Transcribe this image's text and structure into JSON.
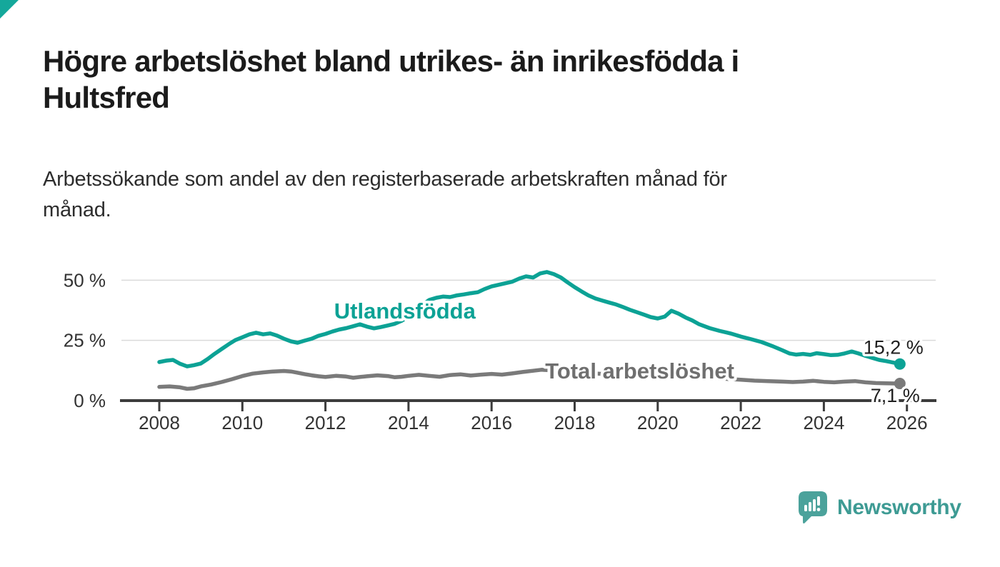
{
  "page": {
    "background": "#ffffff",
    "corner_accent_color": "#14A89B"
  },
  "header": {
    "title": "Högre arbetslöshet bland utrikes- än inrikesfödda i Hultsfred",
    "title_lines": [
      "Högre arbetslöshet bland utrikes- än inrikesfödda i",
      "Hultsfred"
    ],
    "subtitle": "Arbetssökande som andel av den registerbaserade arbetskraften månad för månad.",
    "subtitle_lines": [
      "Arbetssökande som andel av den registerbaserade arbetskraften månad för",
      "månad."
    ]
  },
  "chart_data": {
    "type": "line",
    "title": "",
    "xlabel": "",
    "ylabel": "",
    "x_axis": {
      "range": [
        2007.1,
        2026.7
      ],
      "ticks": [
        2008,
        2010,
        2012,
        2014,
        2016,
        2018,
        2020,
        2022,
        2024,
        2026
      ]
    },
    "y_axis": {
      "range": [
        0,
        56
      ],
      "unit": "%",
      "ticks": [
        {
          "value": 0,
          "label": "0 %"
        },
        {
          "value": 25,
          "label": "25 %"
        },
        {
          "value": 50,
          "label": "50 %"
        }
      ],
      "gridlines": [
        25,
        50
      ]
    },
    "grid": true,
    "legend_position": "inline-labels",
    "colors": {
      "grid": "#DADADA",
      "axis": "#3C3C3C",
      "tick_label": "#333333"
    },
    "series": [
      {
        "name": "Utlandsfödda",
        "id": "utlandsfodda",
        "color": "#0CA295",
        "label_color": "#0CA295",
        "label_at": [
          2012.21,
          34.1
        ],
        "end_label": "15,2 %",
        "points": [
          [
            2008.0,
            16.0
          ],
          [
            2008.17,
            16.6
          ],
          [
            2008.33,
            16.9
          ],
          [
            2008.5,
            15.3
          ],
          [
            2008.67,
            14.2
          ],
          [
            2008.83,
            14.7
          ],
          [
            2009.0,
            15.4
          ],
          [
            2009.17,
            17.3
          ],
          [
            2009.33,
            19.4
          ],
          [
            2009.5,
            21.4
          ],
          [
            2009.67,
            23.4
          ],
          [
            2009.83,
            25.1
          ],
          [
            2010.0,
            26.3
          ],
          [
            2010.17,
            27.5
          ],
          [
            2010.33,
            28.2
          ],
          [
            2010.5,
            27.5
          ],
          [
            2010.67,
            27.9
          ],
          [
            2010.83,
            27.0
          ],
          [
            2011.0,
            25.7
          ],
          [
            2011.17,
            24.6
          ],
          [
            2011.33,
            24.0
          ],
          [
            2011.5,
            24.9
          ],
          [
            2011.67,
            25.7
          ],
          [
            2011.83,
            26.9
          ],
          [
            2012.0,
            27.7
          ],
          [
            2012.17,
            28.7
          ],
          [
            2012.33,
            29.5
          ],
          [
            2012.5,
            30.1
          ],
          [
            2012.67,
            30.9
          ],
          [
            2012.83,
            31.7
          ],
          [
            2013.0,
            30.7
          ],
          [
            2013.17,
            30.0
          ],
          [
            2013.33,
            30.5
          ],
          [
            2013.5,
            31.2
          ],
          [
            2013.67,
            31.9
          ],
          [
            2013.83,
            33.1
          ],
          [
            2014.0,
            34.9
          ],
          [
            2014.17,
            37.2
          ],
          [
            2014.33,
            39.6
          ],
          [
            2014.5,
            41.8
          ],
          [
            2014.67,
            42.7
          ],
          [
            2014.83,
            43.2
          ],
          [
            2015.0,
            43.0
          ],
          [
            2015.17,
            43.7
          ],
          [
            2015.33,
            44.1
          ],
          [
            2015.5,
            44.6
          ],
          [
            2015.67,
            45.0
          ],
          [
            2015.83,
            46.3
          ],
          [
            2016.0,
            47.4
          ],
          [
            2016.17,
            48.1
          ],
          [
            2016.33,
            48.7
          ],
          [
            2016.5,
            49.4
          ],
          [
            2016.67,
            50.7
          ],
          [
            2016.83,
            51.6
          ],
          [
            2017.0,
            51.1
          ],
          [
            2017.17,
            52.8
          ],
          [
            2017.33,
            53.4
          ],
          [
            2017.5,
            52.5
          ],
          [
            2017.67,
            51.1
          ],
          [
            2017.83,
            49.1
          ],
          [
            2018.0,
            47.1
          ],
          [
            2018.17,
            45.3
          ],
          [
            2018.33,
            43.7
          ],
          [
            2018.5,
            42.4
          ],
          [
            2018.67,
            41.5
          ],
          [
            2018.83,
            40.7
          ],
          [
            2019.0,
            39.9
          ],
          [
            2019.17,
            38.8
          ],
          [
            2019.33,
            37.7
          ],
          [
            2019.5,
            36.7
          ],
          [
            2019.67,
            35.7
          ],
          [
            2019.83,
            34.7
          ],
          [
            2020.0,
            34.1
          ],
          [
            2020.17,
            34.9
          ],
          [
            2020.33,
            37.3
          ],
          [
            2020.5,
            36.1
          ],
          [
            2020.67,
            34.5
          ],
          [
            2020.83,
            33.3
          ],
          [
            2021.0,
            31.7
          ],
          [
            2021.25,
            30.1
          ],
          [
            2021.5,
            28.9
          ],
          [
            2021.75,
            27.9
          ],
          [
            2022.0,
            26.6
          ],
          [
            2022.25,
            25.5
          ],
          [
            2022.5,
            24.3
          ],
          [
            2022.75,
            22.7
          ],
          [
            2023.0,
            20.9
          ],
          [
            2023.17,
            19.6
          ],
          [
            2023.33,
            19.1
          ],
          [
            2023.5,
            19.4
          ],
          [
            2023.67,
            19.0
          ],
          [
            2023.83,
            19.7
          ],
          [
            2024.0,
            19.3
          ],
          [
            2024.17,
            18.9
          ],
          [
            2024.33,
            19.0
          ],
          [
            2024.5,
            19.6
          ],
          [
            2024.67,
            20.4
          ],
          [
            2024.83,
            19.6
          ],
          [
            2025.0,
            18.6
          ],
          [
            2025.17,
            17.7
          ],
          [
            2025.33,
            16.9
          ],
          [
            2025.5,
            16.4
          ],
          [
            2025.67,
            15.8
          ],
          [
            2025.83,
            15.2
          ]
        ]
      },
      {
        "name": "Total arbetslöshet",
        "id": "total-arbetsloshet",
        "color": "#7A7A7A",
        "label_color": "#6F6F6F",
        "label_at": [
          2017.29,
          9.15
        ],
        "end_label": "7,1 %",
        "points": [
          [
            2008.0,
            5.7
          ],
          [
            2008.25,
            5.9
          ],
          [
            2008.5,
            5.5
          ],
          [
            2008.67,
            4.9
          ],
          [
            2008.83,
            5.1
          ],
          [
            2009.0,
            5.9
          ],
          [
            2009.25,
            6.7
          ],
          [
            2009.5,
            7.7
          ],
          [
            2009.75,
            8.9
          ],
          [
            2010.0,
            10.2
          ],
          [
            2010.25,
            11.2
          ],
          [
            2010.5,
            11.7
          ],
          [
            2010.75,
            12.1
          ],
          [
            2011.0,
            12.3
          ],
          [
            2011.17,
            12.1
          ],
          [
            2011.33,
            11.6
          ],
          [
            2011.5,
            11.0
          ],
          [
            2011.67,
            10.5
          ],
          [
            2011.83,
            10.1
          ],
          [
            2012.0,
            9.8
          ],
          [
            2012.25,
            10.3
          ],
          [
            2012.5,
            10.0
          ],
          [
            2012.67,
            9.5
          ],
          [
            2012.83,
            9.8
          ],
          [
            2013.0,
            10.1
          ],
          [
            2013.25,
            10.5
          ],
          [
            2013.5,
            10.2
          ],
          [
            2013.67,
            9.7
          ],
          [
            2013.83,
            9.9
          ],
          [
            2014.0,
            10.3
          ],
          [
            2014.25,
            10.7
          ],
          [
            2014.5,
            10.3
          ],
          [
            2014.75,
            9.9
          ],
          [
            2015.0,
            10.6
          ],
          [
            2015.25,
            10.9
          ],
          [
            2015.5,
            10.4
          ],
          [
            2015.75,
            10.8
          ],
          [
            2016.0,
            11.1
          ],
          [
            2016.25,
            10.8
          ],
          [
            2016.5,
            11.3
          ],
          [
            2016.75,
            11.9
          ],
          [
            2017.0,
            12.4
          ],
          [
            2017.2,
            12.8
          ],
          [
            2017.4,
            12.6
          ],
          [
            2017.6,
            12.3
          ],
          [
            2017.83,
            12.0
          ],
          [
            2018.0,
            11.8
          ],
          [
            2018.33,
            11.4
          ],
          [
            2018.67,
            11.1
          ],
          [
            2019.0,
            10.9
          ],
          [
            2019.33,
            10.5
          ],
          [
            2019.67,
            10.2
          ],
          [
            2020.0,
            10.3
          ],
          [
            2020.33,
            11.0
          ],
          [
            2020.67,
            10.6
          ],
          [
            2021.0,
            10.0
          ],
          [
            2021.33,
            9.5
          ],
          [
            2021.67,
            9.0
          ],
          [
            2022.0,
            8.7
          ],
          [
            2022.33,
            8.3
          ],
          [
            2022.67,
            8.1
          ],
          [
            2023.0,
            7.9
          ],
          [
            2023.25,
            7.7
          ],
          [
            2023.5,
            7.9
          ],
          [
            2023.75,
            8.2
          ],
          [
            2024.0,
            7.8
          ],
          [
            2024.25,
            7.6
          ],
          [
            2024.5,
            7.9
          ],
          [
            2024.75,
            8.1
          ],
          [
            2025.0,
            7.6
          ],
          [
            2025.25,
            7.3
          ],
          [
            2025.5,
            7.2
          ],
          [
            2025.83,
            7.1
          ]
        ]
      }
    ]
  },
  "footer": {
    "brand": "Newsworthy",
    "brand_text_color": "#3E9B94",
    "brand_mark_color": "#4BA29B"
  }
}
